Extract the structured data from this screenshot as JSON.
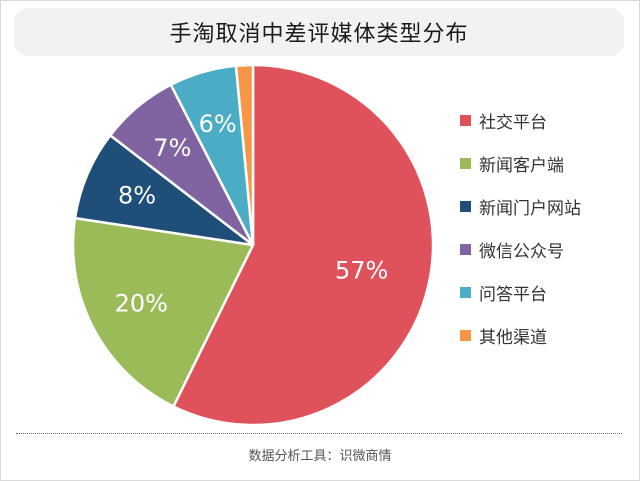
{
  "header": {
    "title": "手淘取消中差评媒体类型分布"
  },
  "footer": {
    "source": "数据分析工具：识微商情"
  },
  "chart_data": {
    "type": "pie",
    "title": "手淘取消中差评媒体类型分布",
    "legend_position": "right",
    "slices": [
      {
        "name": "社交平台",
        "value": 57,
        "label": "57%",
        "color": "#df525b"
      },
      {
        "name": "新闻客户端",
        "value": 20,
        "label": "20%",
        "color": "#9bbb59"
      },
      {
        "name": "新闻门户网站",
        "value": 8,
        "label": "8%",
        "color": "#1f4e79"
      },
      {
        "name": "微信公众号",
        "value": 7,
        "label": "7%",
        "color": "#8064a2"
      },
      {
        "name": "问答平台",
        "value": 6,
        "label": "6%",
        "color": "#4bacc6"
      },
      {
        "name": "其他渠道",
        "value": 1.5,
        "label": "",
        "color": "#f79646"
      }
    ]
  }
}
